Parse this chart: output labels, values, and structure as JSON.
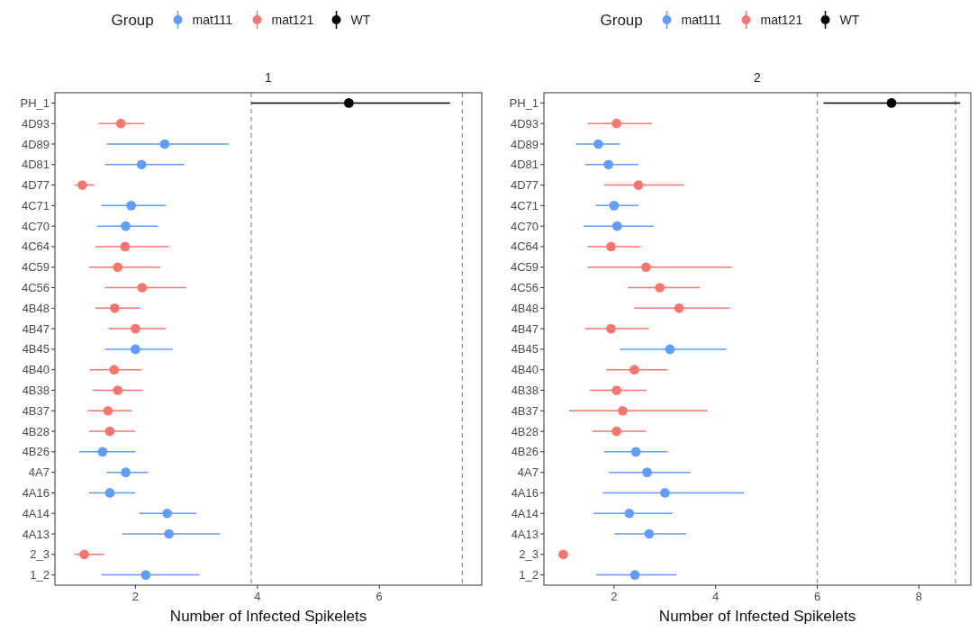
{
  "chart_data": [
    {
      "type": "scatter",
      "orientation": "horizontal",
      "title": "1",
      "xlabel": "Number of Infected Spikelets",
      "legend_title": "Group",
      "legend": "top",
      "grid": false,
      "marker": "circle",
      "categories": [
        "PH_1",
        "4D93",
        "4D89",
        "4D81",
        "4D77",
        "4C71",
        "4C70",
        "4C64",
        "4C59",
        "4C56",
        "4B48",
        "4B47",
        "4B45",
        "4B40",
        "4B38",
        "4B37",
        "4B28",
        "4B26",
        "4A7",
        "4A16",
        "4A14",
        "4A13",
        "2_3",
        "1_2"
      ],
      "xlim": [
        0.68,
        7.68
      ],
      "xticks": [
        2,
        4,
        6
      ],
      "ref_lines": [
        {
          "axis": "x",
          "value": 3.9,
          "color": "#999999",
          "line_style": "dashed"
        },
        {
          "axis": "x",
          "value": 7.36,
          "color": "#999999",
          "line_style": "dashed"
        }
      ],
      "series": [
        {
          "name": "mat111",
          "color": "#619cff",
          "values": [
            null,
            null,
            2.48,
            2.1,
            null,
            1.93,
            1.84,
            null,
            null,
            null,
            null,
            null,
            2.0,
            null,
            null,
            null,
            null,
            1.46,
            1.84,
            1.58,
            2.52,
            2.55,
            null,
            2.17
          ],
          "errors": [
            null,
            null,
            [
              1.53,
              3.53
            ],
            [
              1.5,
              2.8
            ],
            null,
            [
              1.44,
              2.5
            ],
            [
              1.37,
              2.37
            ],
            null,
            null,
            null,
            null,
            null,
            [
              1.5,
              2.61
            ],
            null,
            null,
            null,
            null,
            [
              1.08,
              2.0
            ],
            [
              1.53,
              2.21
            ],
            [
              1.24,
              2.0
            ],
            [
              2.06,
              3.0
            ],
            [
              1.78,
              3.39
            ],
            null,
            [
              1.44,
              3.05
            ]
          ]
        },
        {
          "name": "mat121",
          "color": "#f8766d",
          "values": [
            null,
            1.76,
            null,
            null,
            1.13,
            null,
            null,
            1.83,
            1.71,
            2.11,
            1.66,
            2.0,
            null,
            1.65,
            1.71,
            1.55,
            1.58,
            null,
            null,
            null,
            null,
            null,
            1.16,
            null
          ],
          "errors": [
            null,
            [
              1.4,
              2.15
            ],
            null,
            null,
            [
              1.0,
              1.33
            ],
            null,
            null,
            [
              1.34,
              2.55
            ],
            [
              1.24,
              2.41
            ],
            [
              1.5,
              2.83
            ],
            [
              1.34,
              2.07
            ],
            [
              1.56,
              2.5
            ],
            null,
            [
              1.25,
              2.1
            ],
            [
              1.3,
              2.12
            ],
            [
              1.22,
              1.94
            ],
            [
              1.24,
              2.0
            ],
            null,
            null,
            null,
            null,
            null,
            [
              1.0,
              1.49
            ],
            null
          ]
        },
        {
          "name": "WT",
          "color": "#000000",
          "values": [
            5.5,
            null,
            null,
            null,
            null,
            null,
            null,
            null,
            null,
            null,
            null,
            null,
            null,
            null,
            null,
            null,
            null,
            null,
            null,
            null,
            null,
            null,
            null,
            null
          ],
          "errors": [
            [
              3.9,
              7.16
            ],
            null,
            null,
            null,
            null,
            null,
            null,
            null,
            null,
            null,
            null,
            null,
            null,
            null,
            null,
            null,
            null,
            null,
            null,
            null,
            null,
            null,
            null,
            null
          ]
        }
      ]
    },
    {
      "type": "scatter",
      "orientation": "horizontal",
      "title": "2",
      "xlabel": "Number of Infected Spikelets",
      "legend_title": "Group",
      "legend": "top",
      "grid": false,
      "marker": "circle",
      "categories": [
        "PH_1",
        "4D93",
        "4D89",
        "4D81",
        "4D77",
        "4C71",
        "4C70",
        "4C64",
        "4C59",
        "4C56",
        "4B48",
        "4B47",
        "4B45",
        "4B40",
        "4B38",
        "4B37",
        "4B28",
        "4B26",
        "4A7",
        "4A16",
        "4A14",
        "4A13",
        "2_3",
        "1_2"
      ],
      "xlim": [
        0.62,
        9.02
      ],
      "xticks": [
        2,
        4,
        6,
        8
      ],
      "ref_lines": [
        {
          "axis": "x",
          "value": 6.0,
          "color": "#999999",
          "line_style": "dashed"
        },
        {
          "axis": "x",
          "value": 8.72,
          "color": "#999999",
          "line_style": "dashed"
        }
      ],
      "series": [
        {
          "name": "mat111",
          "color": "#619cff",
          "values": [
            null,
            null,
            1.69,
            1.89,
            null,
            2.0,
            2.06,
            null,
            null,
            null,
            null,
            null,
            3.1,
            null,
            null,
            null,
            null,
            2.43,
            2.65,
            3.0,
            2.3,
            2.69,
            null,
            2.41
          ],
          "errors": [
            null,
            null,
            [
              1.25,
              2.12
            ],
            [
              1.43,
              2.48
            ],
            null,
            [
              1.64,
              2.48
            ],
            [
              1.4,
              2.78
            ],
            null,
            null,
            null,
            null,
            null,
            [
              2.11,
              4.21
            ],
            null,
            null,
            null,
            null,
            [
              1.8,
              3.05
            ],
            [
              1.9,
              3.5
            ],
            [
              1.78,
              4.56
            ],
            [
              1.6,
              3.15
            ],
            [
              2.01,
              3.42
            ],
            null,
            [
              1.65,
              3.23
            ]
          ]
        },
        {
          "name": "mat121",
          "color": "#f8766d",
          "values": [
            null,
            2.05,
            null,
            null,
            2.48,
            null,
            null,
            1.94,
            2.63,
            2.9,
            3.28,
            1.94,
            null,
            2.4,
            2.05,
            2.17,
            2.05,
            null,
            null,
            null,
            null,
            null,
            1.0,
            null
          ],
          "errors": [
            null,
            [
              1.48,
              2.74
            ],
            null,
            null,
            [
              1.8,
              3.38
            ],
            null,
            null,
            [
              1.48,
              2.52
            ],
            [
              1.48,
              4.32
            ],
            [
              2.27,
              3.69
            ],
            [
              2.4,
              4.28
            ],
            [
              1.43,
              2.69
            ],
            null,
            [
              1.85,
              3.05
            ],
            [
              1.52,
              2.63
            ],
            [
              1.11,
              3.84
            ],
            [
              1.57,
              2.63
            ],
            null,
            null,
            null,
            null,
            null,
            null,
            null
          ]
        },
        {
          "name": "WT",
          "color": "#000000",
          "values": [
            7.46,
            null,
            null,
            null,
            null,
            null,
            null,
            null,
            null,
            null,
            null,
            null,
            null,
            null,
            null,
            null,
            null,
            null,
            null,
            null,
            null,
            null,
            null,
            null
          ],
          "errors": [
            [
              6.12,
              8.81
            ],
            null,
            null,
            null,
            null,
            null,
            null,
            null,
            null,
            null,
            null,
            null,
            null,
            null,
            null,
            null,
            null,
            null,
            null,
            null,
            null,
            null,
            null,
            null
          ]
        }
      ]
    }
  ]
}
